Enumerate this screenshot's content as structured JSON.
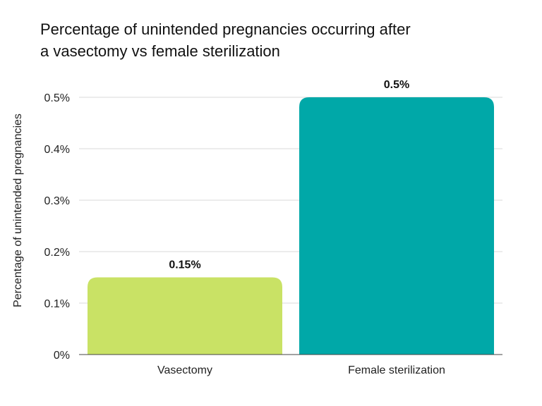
{
  "chart_data": {
    "type": "bar",
    "title_lines": [
      "Percentage of unintended pregnancies occurring after",
      "a vasectomy vs female sterilization"
    ],
    "xlabel": "",
    "ylabel": "Percentage of unintended pregnancies",
    "categories": [
      "Vasectomy",
      "Female sterilization"
    ],
    "values": [
      0.15,
      0.5
    ],
    "data_labels": [
      "0.15%",
      "0.5%"
    ],
    "ylim": [
      0,
      0.5
    ],
    "yticks": [
      0,
      0.1,
      0.2,
      0.3,
      0.4,
      0.5
    ],
    "ytick_labels": [
      "0%",
      "0.1%",
      "0.2%",
      "0.3%",
      "0.4%",
      "0.5%"
    ],
    "grid": true,
    "legend": "none",
    "colors": [
      "#c9e265",
      "#00a8a8"
    ],
    "grid_color": "#d9d9d9",
    "axis_color": "#444444"
  }
}
